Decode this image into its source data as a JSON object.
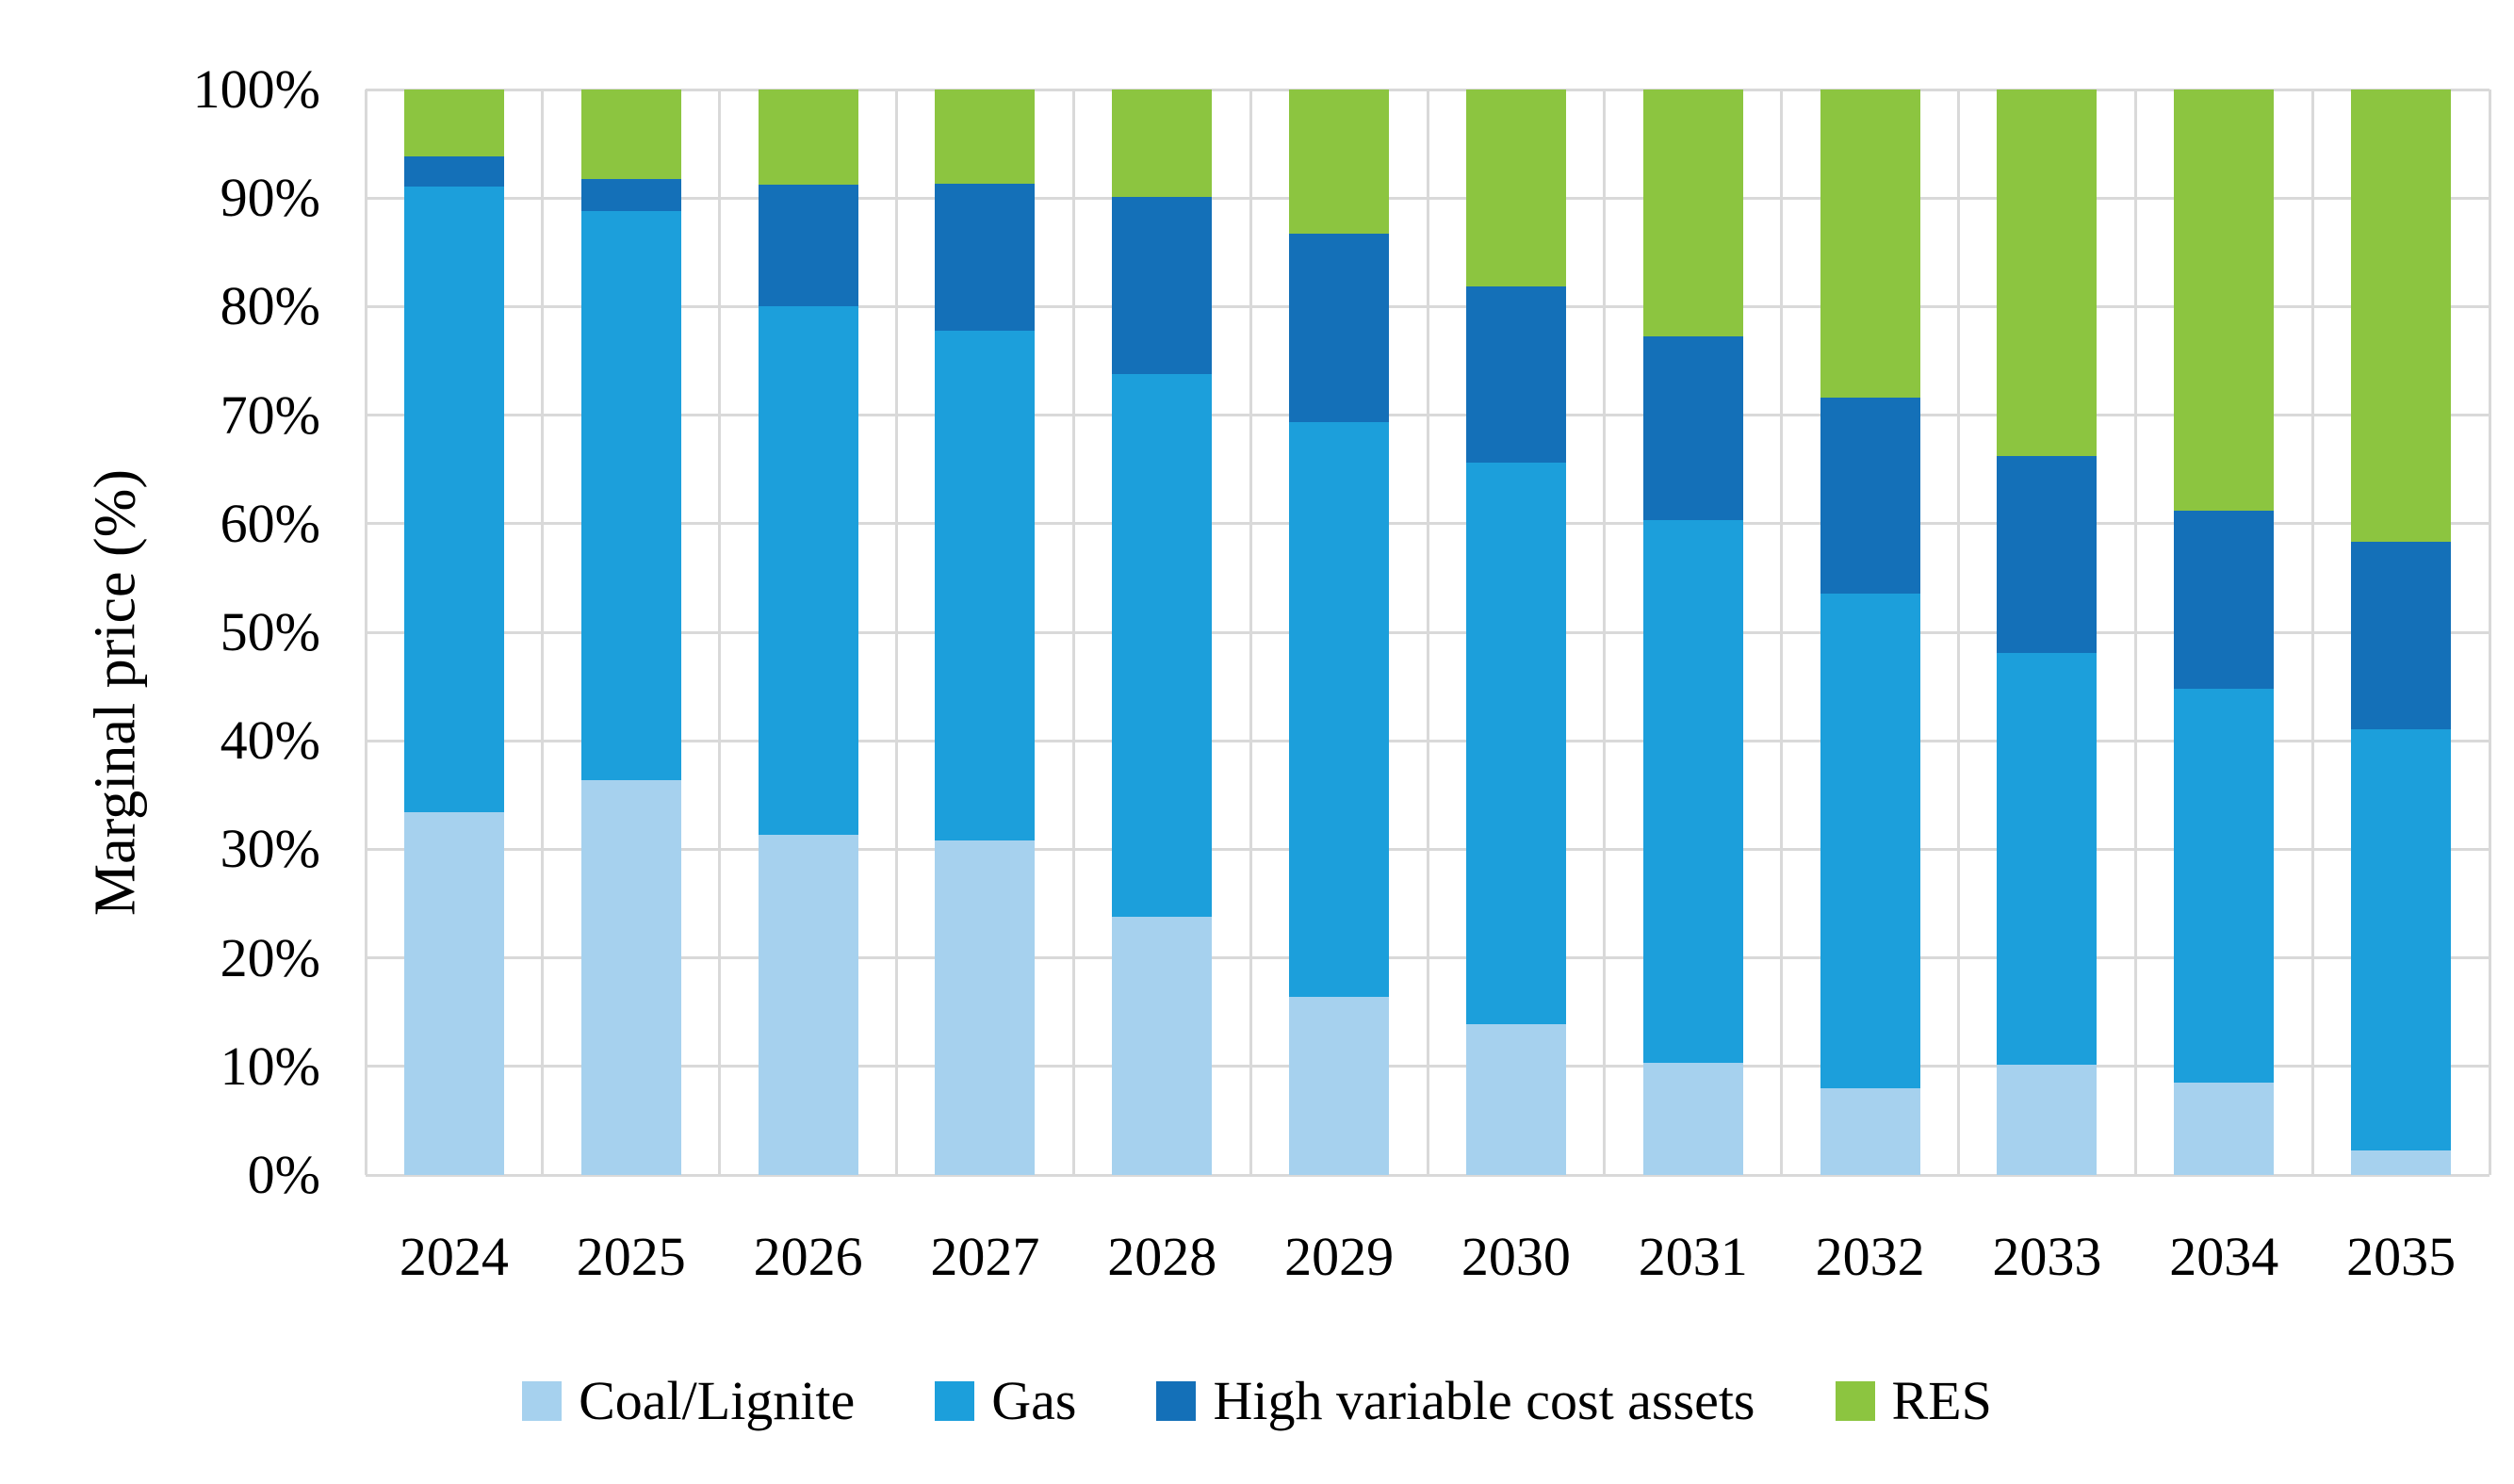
{
  "y_axis": {
    "title": "Marginal price (%)",
    "tick_labels": [
      "0%",
      "10%",
      "20%",
      "30%",
      "40%",
      "50%",
      "60%",
      "70%",
      "80%",
      "90%",
      "100%"
    ]
  },
  "x_axis": {
    "labels": [
      "2024",
      "2025",
      "2026",
      "2027",
      "2028",
      "2029",
      "2030",
      "2031",
      "2032",
      "2033",
      "2034",
      "2035"
    ]
  },
  "legend": {
    "items": [
      {
        "label": "Coal/Lignite",
        "color": "#A6D1EE"
      },
      {
        "label": "Gas",
        "color": "#1C9FDB"
      },
      {
        "label": "High variable cost assets",
        "color": "#1470B8"
      },
      {
        "label": "RES",
        "color": "#8CC540"
      }
    ]
  },
  "colors": {
    "gridline": "#D9D9D9",
    "background": "#FFFFFF",
    "text": "#000000"
  },
  "chart_data": {
    "type": "bar",
    "stacked": true,
    "title": "",
    "xlabel": "",
    "ylabel": "Marginal price (%)",
    "ylim": [
      0,
      100
    ],
    "y_tick_step": 10,
    "grid": "horizontal major gridlines every 10% plus vertical category-boundary gridlines",
    "legend_position": "bottom",
    "categories": [
      "2024",
      "2025",
      "2026",
      "2027",
      "2028",
      "2029",
      "2030",
      "2031",
      "2032",
      "2033",
      "2034",
      "2035"
    ],
    "series": [
      {
        "name": "Coal/Lignite",
        "color": "#A6D1EE",
        "values": [
          33.4,
          36.4,
          31.3,
          30.8,
          23.8,
          16.4,
          13.9,
          10.3,
          8.0,
          10.2,
          8.5,
          2.3
        ]
      },
      {
        "name": "Gas",
        "color": "#1C9FDB",
        "values": [
          57.7,
          52.4,
          48.7,
          47.0,
          50.0,
          53.0,
          51.7,
          50.0,
          45.6,
          37.9,
          36.3,
          38.8
        ]
      },
      {
        "name": "High variable cost assets",
        "color": "#1470B8",
        "values": [
          2.7,
          3.0,
          11.2,
          13.5,
          16.3,
          17.3,
          16.3,
          17.0,
          18.0,
          18.1,
          16.4,
          17.2
        ]
      },
      {
        "name": "RES",
        "color": "#8CC540",
        "values": [
          6.2,
          8.2,
          8.8,
          8.7,
          9.9,
          13.3,
          18.1,
          22.7,
          28.4,
          33.8,
          38.8,
          41.7
        ]
      }
    ]
  }
}
